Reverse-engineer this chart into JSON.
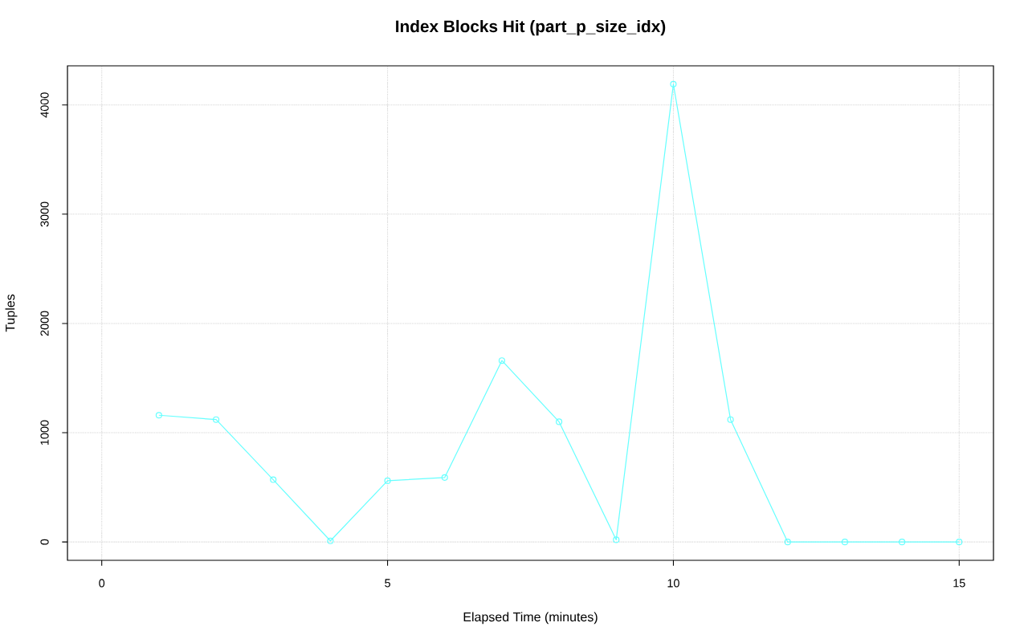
{
  "chart_data": {
    "type": "line",
    "title": "Index Blocks Hit (part_p_size_idx)",
    "xlabel": "Elapsed Time (minutes)",
    "ylabel": "Tuples",
    "x": [
      1,
      2,
      3,
      4,
      5,
      6,
      7,
      8,
      9,
      10,
      11,
      12,
      13,
      14,
      15
    ],
    "values": [
      1160,
      1120,
      570,
      10,
      560,
      590,
      1660,
      1100,
      20,
      4190,
      1120,
      0,
      0,
      0,
      0
    ],
    "color": "#66ffff",
    "xlim": [
      -0.6,
      15.6
    ],
    "ylim": [
      -168,
      4358
    ],
    "xticks": [
      0,
      5,
      10,
      15
    ],
    "yticks": [
      0,
      1000,
      2000,
      3000,
      4000
    ],
    "grid": true,
    "marker": "circle",
    "line_style": "solid"
  }
}
